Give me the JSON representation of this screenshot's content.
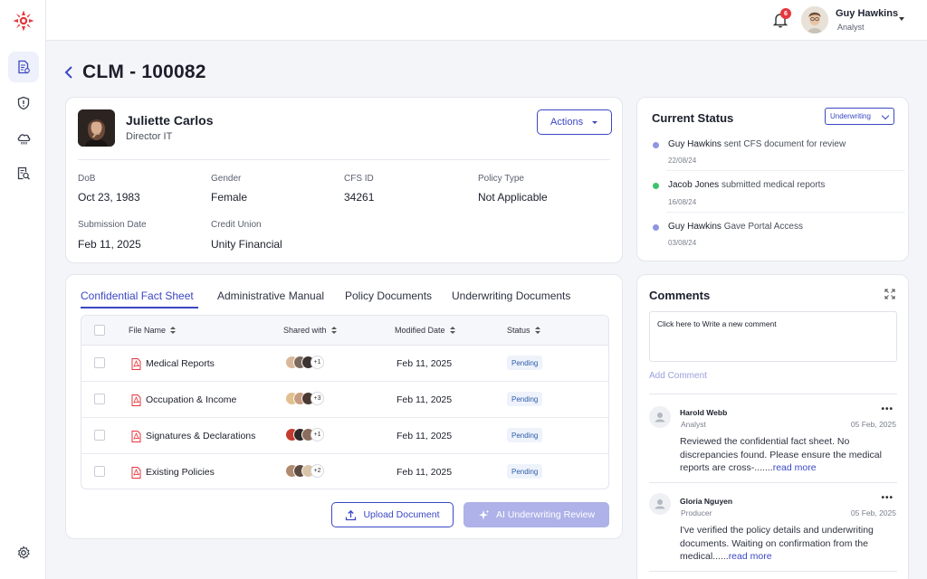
{
  "app": {
    "title": "CLM - 100082"
  },
  "sidebar": {
    "items": [
      {
        "name": "document-icon",
        "active": true
      },
      {
        "name": "shield-alert-icon",
        "active": false
      },
      {
        "name": "cloud-icon",
        "active": false
      },
      {
        "name": "report-search-icon",
        "active": false
      }
    ],
    "footer_icon": "gear-icon"
  },
  "header": {
    "notifications": "6",
    "user_name": "Guy Hawkins",
    "user_role": "Analyst"
  },
  "profile": {
    "name": "Juliette Carlos",
    "title": "Director IT",
    "actions_label": "Actions",
    "fields": [
      {
        "label": "DoB",
        "value": "Oct 23, 1983"
      },
      {
        "label": "Gender",
        "value": "Female"
      },
      {
        "label": "CFS ID",
        "value": "34261"
      },
      {
        "label": "Policy Type",
        "value": "Not Applicable"
      },
      {
        "label": "Submission Date",
        "value": "Feb 11, 2025"
      },
      {
        "label": "Credit Union",
        "value": "Unity Financial"
      }
    ]
  },
  "current_status": {
    "title": "Current Status",
    "selected": "Underwriting",
    "timeline": [
      {
        "actor": "Guy Hawkins",
        "action": "sent CFS document for review",
        "date": "22/08/24",
        "color": "#8f95e0"
      },
      {
        "actor": "Jacob Jones",
        "action": "submitted medical reports",
        "date": "16/08/24",
        "color": "#3ac46b"
      },
      {
        "actor": "Guy Hawkins",
        "action": "Gave Portal Access",
        "date": "03/08/24",
        "color": "#8f95e0"
      }
    ]
  },
  "documents": {
    "tabs": [
      "Confidential Fact Sheet",
      "Administrative Manual",
      "Policy Documents",
      "Underwriting Documents"
    ],
    "columns": [
      "File Name",
      "Shared with",
      "Modified Date",
      "Status"
    ],
    "rows": [
      {
        "file": "Medical Reports",
        "extra": "+1",
        "date": "Feb 11, 2025",
        "status": "Pending"
      },
      {
        "file": "Occupation & Income",
        "extra": "+3",
        "date": "Feb 11, 2025",
        "status": "Pending"
      },
      {
        "file": "Signatures & Declarations",
        "extra": "+1",
        "date": "Feb 11, 2025",
        "status": "Pending"
      },
      {
        "file": "Existing Policies",
        "extra": "+2",
        "date": "Feb 11, 2025",
        "status": "Pending"
      }
    ],
    "upload_label": "Upload Document",
    "ai_label": "AI Underwriting Review"
  },
  "comments": {
    "title": "Comments",
    "placeholder": "Click here to Write a new comment",
    "add_label": "Add Comment",
    "items": [
      {
        "name": "Harold Webb",
        "role": "Analyst",
        "date": "05 Feb, 2025",
        "text": "Reviewed the confidential fact sheet. No discrepancies found. Please ensure the medical reports are cross-.......",
        "more": "read more"
      },
      {
        "name": "Gloria Nguyen",
        "role": "Producer",
        "date": "05 Feb, 2025",
        "text": "I've verified the policy details and underwriting documents. Waiting on confirmation from the medical......",
        "more": "read more"
      }
    ]
  }
}
